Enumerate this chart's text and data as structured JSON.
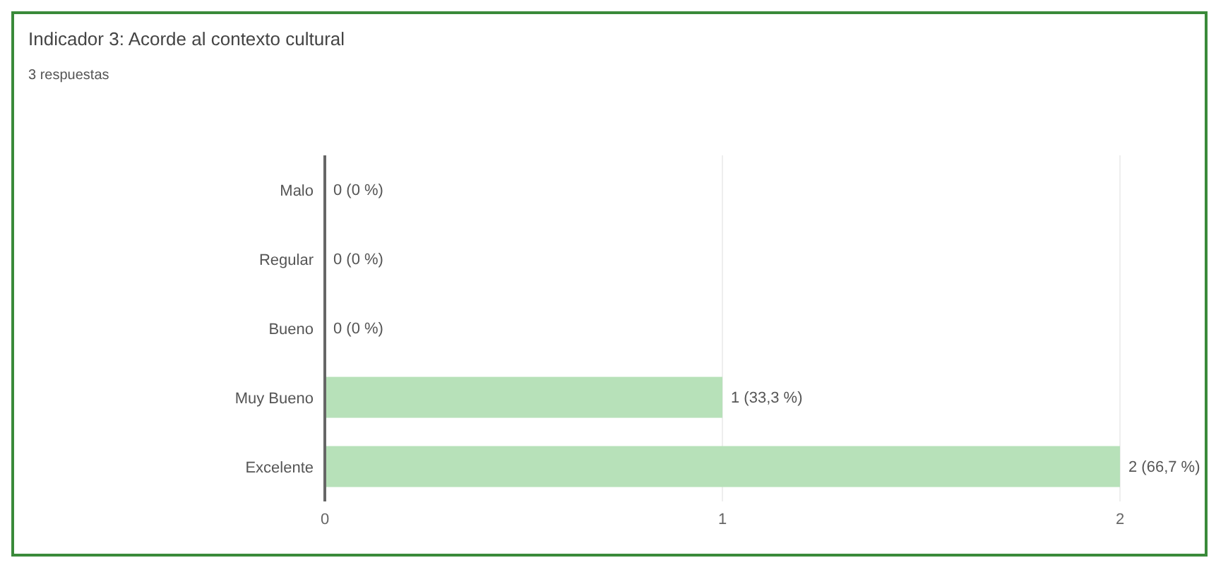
{
  "chart_data": {
    "type": "bar",
    "orientation": "horizontal",
    "title": "Indicador 3: Acorde al contexto cultural",
    "subtitle": "3 respuestas",
    "categories": [
      "Malo",
      "Regular",
      "Bueno",
      "Muy Bueno",
      "Excelente"
    ],
    "values": [
      0,
      0,
      0,
      1,
      2
    ],
    "color": "#b7e1b9",
    "value_labels": [
      "0 (0 %)",
      "0 (0 %)",
      "0 (0 %)",
      "1 (33,3 %)",
      "2 (66,7 %)"
    ],
    "xlim": [
      0,
      2
    ],
    "xticks": [
      0,
      1,
      2
    ],
    "grid": "x"
  }
}
